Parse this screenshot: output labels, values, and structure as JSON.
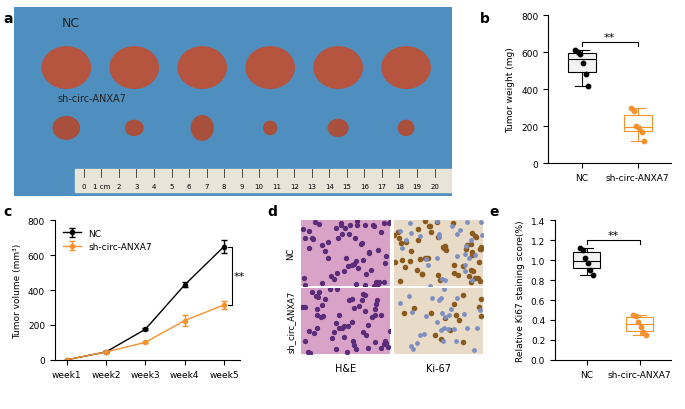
{
  "chart_data": [
    {
      "panel": "b",
      "type": "box",
      "categories": [
        "NC",
        "sh-circ-ANXA7"
      ],
      "values": [
        [
          610,
          600,
          590,
          540,
          480,
          420
        ],
        [
          300,
          280,
          200,
          190,
          170,
          120
        ]
      ],
      "colors": [
        "#000000",
        "#f5922f"
      ],
      "y_label": "Tumor weight (mg)",
      "ylim": [
        0,
        800
      ],
      "yticks": [
        0,
        200,
        400,
        600,
        800
      ],
      "annotation": "**"
    },
    {
      "panel": "c",
      "type": "line",
      "categories": [
        "week1",
        "week2",
        "week3",
        "week4",
        "week5"
      ],
      "series": [
        {
          "name": "NC",
          "color": "#000000",
          "marker": "o",
          "values": [
            0,
            45,
            175,
            430,
            650
          ],
          "error": [
            0,
            3,
            5,
            15,
            35
          ]
        },
        {
          "name": "sh-circ-ANXA7",
          "color": "#f5922f",
          "marker": "o",
          "values": [
            0,
            45,
            100,
            225,
            315
          ],
          "error": [
            0,
            3,
            5,
            30,
            25
          ]
        }
      ],
      "y_label": "Tumor volume (mm³)",
      "ylim": [
        0,
        800
      ],
      "yticks": [
        0,
        200,
        400,
        600,
        800
      ],
      "legend": "upper left",
      "annotation": "**"
    },
    {
      "panel": "e",
      "type": "box",
      "categories": [
        "NC",
        "sh-circ-ANXA7"
      ],
      "values": [
        [
          1.12,
          1.1,
          1.02,
          0.97,
          0.9,
          0.85
        ],
        [
          0.45,
          0.44,
          0.38,
          0.33,
          0.28,
          0.25
        ]
      ],
      "colors": [
        "#000000",
        "#f5922f"
      ],
      "y_label": "Relative Ki67 staining score(%)",
      "ylim": [
        0.0,
        1.4
      ],
      "yticks": [
        0.0,
        0.2,
        0.4,
        0.6,
        0.8,
        1.0,
        1.2,
        1.4
      ],
      "annotation": "**"
    }
  ],
  "photo": {
    "panel": "a",
    "labels": [
      "NC",
      "sh-circ-ANXA7"
    ],
    "ruler": [
      "0",
      "1 cm",
      "2",
      "3",
      "4",
      "5",
      "6",
      "7",
      "8",
      "9",
      "10",
      "11",
      "12",
      "13",
      "14",
      "15",
      "16",
      "17",
      "18",
      "19",
      "20"
    ]
  },
  "histology": {
    "panel": "d",
    "rows": [
      "NC",
      "sh_circ_ANXA7"
    ],
    "columns": [
      "H&E",
      "Ki-67"
    ]
  }
}
